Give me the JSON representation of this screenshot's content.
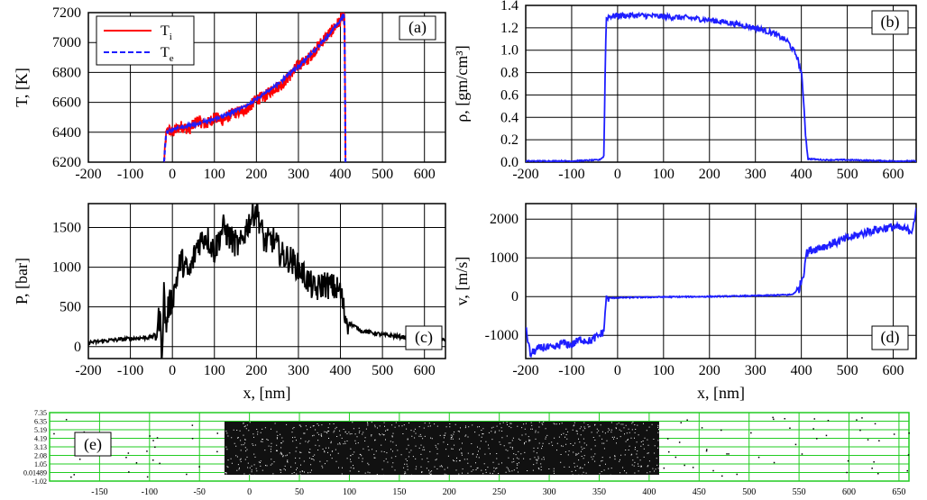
{
  "figure": {
    "panels": [
      "a",
      "b",
      "c",
      "d",
      "e"
    ]
  },
  "chart_data": [
    {
      "id": "a",
      "type": "line",
      "panel_label": "(a)",
      "xlabel": "",
      "ylabel": "T, [K]",
      "xlim": [
        -200,
        650
      ],
      "ylim": [
        6200,
        7200
      ],
      "xticks": [
        -200,
        -100,
        0,
        100,
        200,
        300,
        400,
        500,
        600
      ],
      "yticks": [
        6200,
        6400,
        6600,
        6800,
        7000,
        7200
      ],
      "grid": true,
      "legend": {
        "placement": "top-left",
        "entries": [
          {
            "label": "T",
            "subscript": "i",
            "color": "#ff0000",
            "style": "solid"
          },
          {
            "label": "T",
            "subscript": "e",
            "color": "#1e1eff",
            "style": "dashed"
          }
        ]
      },
      "series": [
        {
          "name": "Ti",
          "color": "#ff0000",
          "dashed": false,
          "x": [
            -20,
            -15,
            -10,
            0,
            20,
            40,
            60,
            80,
            100,
            120,
            140,
            160,
            180,
            200,
            220,
            240,
            260,
            280,
            300,
            320,
            340,
            360,
            380,
            400,
            405,
            410,
            412
          ],
          "y": [
            6200,
            6380,
            6420,
            6400,
            6440,
            6420,
            6480,
            6450,
            6500,
            6480,
            6520,
            6540,
            6560,
            6620,
            6640,
            6690,
            6720,
            6780,
            6850,
            6880,
            6950,
            7020,
            7080,
            7150,
            7180,
            7150,
            6200
          ]
        },
        {
          "name": "Te",
          "color": "#1e1eff",
          "dashed": true,
          "x": [
            -20,
            -15,
            0,
            50,
            100,
            150,
            200,
            250,
            300,
            350,
            400,
            408,
            410,
            412
          ],
          "y": [
            6200,
            6390,
            6420,
            6450,
            6490,
            6540,
            6620,
            6720,
            6840,
            6980,
            7150,
            7190,
            7100,
            6200
          ]
        }
      ]
    },
    {
      "id": "b",
      "type": "line",
      "panel_label": "(b)",
      "xlabel": "",
      "ylabel": "ρ, [gm/cm³]",
      "xlim": [
        -200,
        650
      ],
      "ylim": [
        0,
        1.4
      ],
      "xticks": [
        -200,
        -100,
        0,
        100,
        200,
        300,
        400,
        500,
        600
      ],
      "yticks": [
        0.0,
        0.2,
        0.4,
        0.6,
        0.8,
        1.0,
        1.2,
        1.4
      ],
      "ytick_labels": [
        "0.0",
        "0.2",
        "0.4",
        "0.6",
        "0.8",
        "1.0",
        "1.2",
        "1.4"
      ],
      "grid": true,
      "series": [
        {
          "name": "rho",
          "color": "#1e1eff",
          "x": [
            -200,
            -100,
            -40,
            -30,
            -25,
            -20,
            0,
            50,
            100,
            150,
            200,
            250,
            300,
            340,
            370,
            390,
            400,
            405,
            410,
            415,
            450,
            500,
            600,
            650
          ],
          "y": [
            0.01,
            0.01,
            0.02,
            0.05,
            1.28,
            1.3,
            1.31,
            1.31,
            1.3,
            1.29,
            1.27,
            1.24,
            1.2,
            1.15,
            1.08,
            0.95,
            0.8,
            0.55,
            0.2,
            0.03,
            0.02,
            0.02,
            0.01,
            0.01
          ]
        }
      ]
    },
    {
      "id": "c",
      "type": "line",
      "panel_label": "(c)",
      "xlabel": "x, [nm]",
      "ylabel": "P, [bar]",
      "xlim": [
        -200,
        650
      ],
      "ylim": [
        -150,
        1800
      ],
      "xticks": [
        -200,
        -100,
        0,
        100,
        200,
        300,
        400,
        500,
        600
      ],
      "yticks": [
        0,
        500,
        1000,
        1500
      ],
      "grid": true,
      "series": [
        {
          "name": "P",
          "color": "#000000",
          "x": [
            -200,
            -150,
            -100,
            -50,
            -40,
            -30,
            -25,
            -20,
            -15,
            -10,
            0,
            20,
            40,
            60,
            80,
            100,
            120,
            140,
            160,
            180,
            200,
            220,
            240,
            260,
            280,
            300,
            320,
            340,
            360,
            380,
            400,
            410,
            420,
            450,
            500,
            550,
            600,
            650
          ],
          "y": [
            50,
            80,
            100,
            120,
            150,
            400,
            -100,
            700,
            200,
            500,
            600,
            1100,
            900,
            1300,
            1400,
            1200,
            1500,
            1350,
            1250,
            1550,
            1750,
            1300,
            1350,
            1150,
            1100,
            1000,
            850,
            700,
            800,
            750,
            700,
            400,
            300,
            200,
            150,
            120,
            100,
            80
          ]
        }
      ]
    },
    {
      "id": "d",
      "type": "line",
      "panel_label": "(d)",
      "xlabel": "x, [nm]",
      "ylabel": "v, [m/s]",
      "xlim": [
        -200,
        650
      ],
      "ylim": [
        -1600,
        2400
      ],
      "xticks": [
        -200,
        -100,
        0,
        100,
        200,
        300,
        400,
        500,
        600
      ],
      "yticks": [
        -1000,
        0,
        1000,
        2000
      ],
      "grid": true,
      "series": [
        {
          "name": "v",
          "color": "#1e1eff",
          "x": [
            -200,
            -190,
            -180,
            -160,
            -140,
            -120,
            -100,
            -80,
            -60,
            -40,
            -30,
            -25,
            -20,
            0,
            100,
            200,
            300,
            380,
            395,
            405,
            410,
            420,
            450,
            500,
            550,
            600,
            640,
            650
          ],
          "y": [
            -800,
            -1500,
            -1400,
            -1300,
            -1350,
            -1200,
            -1250,
            -1100,
            -1150,
            -1000,
            -900,
            -50,
            -40,
            -30,
            -10,
            0,
            20,
            50,
            200,
            600,
            1100,
            1200,
            1300,
            1500,
            1700,
            1800,
            1700,
            2200
          ]
        }
      ]
    },
    {
      "id": "e",
      "type": "scatter",
      "panel_label": "(e)",
      "xlabel": "",
      "ylabel": "",
      "xlim": [
        -200,
        660
      ],
      "ylim": [
        -1.02,
        7.35
      ],
      "xticks": [
        -150,
        -100,
        -50,
        0,
        50,
        100,
        150,
        200,
        250,
        300,
        350,
        400,
        450,
        500,
        550,
        600,
        650
      ],
      "yticks_labels": [
        "7.35",
        "6.35",
        "5.19",
        "4.19",
        "3.13",
        "2.08",
        "1.05",
        "0.01489",
        "-1.02"
      ],
      "grid": true,
      "grid_color": "#22cc22",
      "dense_region": {
        "xrange": [
          -25,
          410
        ],
        "yrange": [
          0.0,
          6.4
        ]
      },
      "sparse_region": {
        "xrange": [
          -200,
          660
        ]
      }
    }
  ]
}
